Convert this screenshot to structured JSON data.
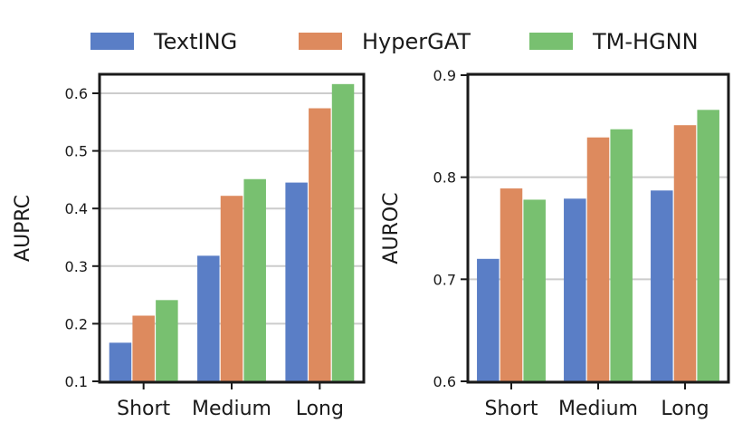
{
  "legend": {
    "entries": [
      {
        "name": "TextING",
        "color": "#5a7ec6"
      },
      {
        "name": "HyperGAT",
        "color": "#dd8a5e"
      },
      {
        "name": "TM-HGNN",
        "color": "#78c070"
      }
    ],
    "placement": "top-center"
  },
  "chart_data": [
    {
      "type": "bar",
      "categories": [
        "Short",
        "Medium",
        "Long"
      ],
      "series": [
        {
          "name": "TextING",
          "values": [
            0.167,
            0.318,
            0.445
          ]
        },
        {
          "name": "HyperGAT",
          "values": [
            0.214,
            0.422,
            0.574
          ]
        },
        {
          "name": "TM-HGNN",
          "values": [
            0.241,
            0.451,
            0.616
          ]
        }
      ],
      "ylabel": "AUPRC",
      "xlabel": "",
      "ylim": [
        0.1,
        0.63
      ],
      "yticks": [
        0.1,
        0.2,
        0.3,
        0.4,
        0.5,
        0.6
      ],
      "ytick_labels": [
        "0.1",
        "0.2",
        "0.3",
        "0.4",
        "0.5",
        "0.6"
      ],
      "grid": true
    },
    {
      "type": "bar",
      "categories": [
        "Short",
        "Medium",
        "Long"
      ],
      "series": [
        {
          "name": "TextING",
          "values": [
            0.72,
            0.779,
            0.787
          ]
        },
        {
          "name": "HyperGAT",
          "values": [
            0.789,
            0.839,
            0.851
          ]
        },
        {
          "name": "TM-HGNN",
          "values": [
            0.778,
            0.847,
            0.866
          ]
        }
      ],
      "ylabel": "AUROC",
      "xlabel": "",
      "ylim": [
        0.6,
        0.9
      ],
      "yticks": [
        0.6,
        0.7,
        0.8,
        0.9
      ],
      "ytick_labels": [
        "0.6",
        "0.7",
        "0.8",
        "0.9"
      ],
      "grid": true
    }
  ]
}
